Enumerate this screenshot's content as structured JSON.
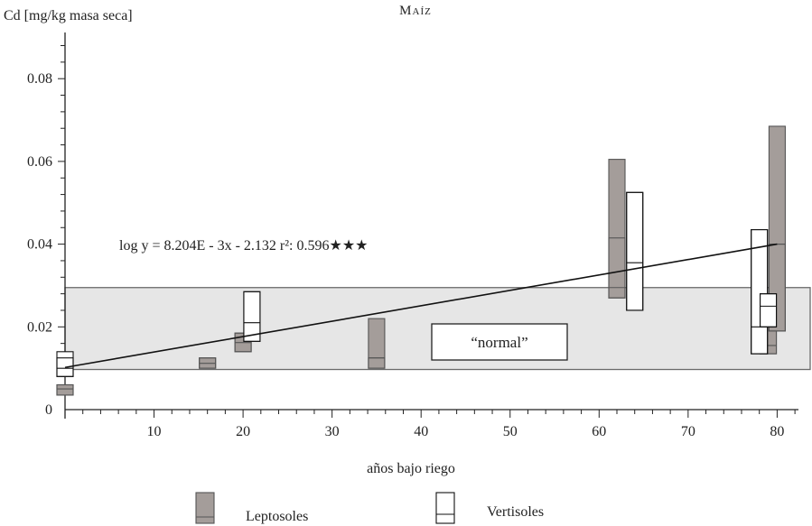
{
  "chart_data": {
    "type": "box",
    "title": "Maíz",
    "ylabel": "Cd [mg/kg masa seca]",
    "xlabel": "años bajo riego",
    "xlim": [
      0,
      84
    ],
    "ylim": [
      0,
      0.092
    ],
    "xticks": [
      10,
      20,
      30,
      40,
      50,
      60,
      70,
      80
    ],
    "yticks": [
      0,
      0.02,
      0.04,
      0.06,
      0.08
    ],
    "ytick_labels": [
      "0",
      "0.02",
      "0.04",
      "0.06",
      "0.08"
    ],
    "normal_band": {
      "label": "“normal”",
      "y_range": [
        0.0097,
        0.0295
      ]
    },
    "regression": {
      "label": "log y = 8.204E - 3x - 2.132 r²: 0.596★★★",
      "x": [
        0,
        80
      ],
      "y": [
        0.0102,
        0.04
      ]
    },
    "series": [
      {
        "name": "Leptosoles",
        "color": "#a49d9a",
        "boxes": [
          {
            "x": 0,
            "whisker": [
              0.0035,
              0.006
            ],
            "box": [
              0.0035,
              0.006
            ],
            "median": 0.005
          },
          {
            "x": 16,
            "whisker": [
              0.01,
              0.0125
            ],
            "box": [
              0.01,
              0.0125
            ],
            "median": 0.0112
          },
          {
            "x": 20,
            "whisker": [
              0.014,
              0.0185
            ],
            "box": [
              0.014,
              0.0185
            ],
            "median": 0.0162
          },
          {
            "x": 35,
            "whisker": [
              0.01,
              0.022
            ],
            "box": [
              0.01,
              0.0125
            ],
            "median": 0.0125
          },
          {
            "x": 62,
            "whisker": [
              0.027,
              0.0605
            ],
            "box": [
              0.027,
              0.0415
            ],
            "median": 0.0295
          },
          {
            "x": 79,
            "whisker": [
              0.0135,
              0.022
            ],
            "box": [
              0.0135,
              0.022
            ],
            "median": 0.0155
          },
          {
            "x": 80,
            "whisker": [
              0.019,
              0.0685
            ],
            "box": [
              0.019,
              0.04
            ],
            "median": 0.04
          }
        ]
      },
      {
        "name": "Vertisoles",
        "color": "#ffffff",
        "boxes": [
          {
            "x": 0,
            "whisker": [
              0.008,
              0.014
            ],
            "box": [
              0.008,
              0.0125
            ],
            "median": 0.01
          },
          {
            "x": 21,
            "whisker": [
              0.0165,
              0.0285
            ],
            "box": [
              0.0165,
              0.0285
            ],
            "median": 0.021
          },
          {
            "x": 64,
            "whisker": [
              0.024,
              0.0525
            ],
            "box": [
              0.024,
              0.0525
            ],
            "median": 0.0355
          },
          {
            "x": 78,
            "whisker": [
              0.0135,
              0.0435
            ],
            "box": [
              0.0135,
              0.0435
            ],
            "median": 0.02
          },
          {
            "x": 79,
            "whisker": [
              0.02,
              0.028
            ],
            "box": [
              0.02,
              0.028
            ],
            "median": 0.025
          }
        ]
      }
    ],
    "legend": [
      {
        "name": "Leptosoles",
        "color": "#a49d9a"
      },
      {
        "name": "Vertisoles",
        "color": "#ffffff"
      }
    ],
    "legend_position": "bottom"
  }
}
